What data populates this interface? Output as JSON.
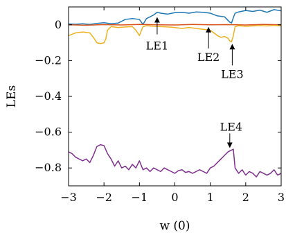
{
  "chart_data": {
    "type": "line",
    "xlabel": "w (0)",
    "ylabel": "LEs",
    "xlim": [
      -3,
      3
    ],
    "ylim": [
      -0.9,
      0.1
    ],
    "xticks": [
      -3,
      -2,
      -1,
      0,
      1,
      2,
      3
    ],
    "yticks": [
      0,
      -0.2,
      -0.4,
      -0.6,
      -0.8
    ],
    "xtick_labels": [
      "−3",
      "−2",
      "−1",
      "0",
      "1",
      "2",
      "3"
    ],
    "ytick_labels": [
      "0",
      "−0.2",
      "−0.4",
      "−0.6",
      "−0.8"
    ],
    "grid": false,
    "series": [
      {
        "name": "LE1",
        "color": "#1f77b4",
        "x": [
          -3.0,
          -2.8,
          -2.6,
          -2.4,
          -2.2,
          -2.0,
          -1.8,
          -1.6,
          -1.4,
          -1.2,
          -1.0,
          -0.9,
          -0.8,
          -0.6,
          -0.5,
          -0.4,
          -0.2,
          0.0,
          0.2,
          0.4,
          0.6,
          0.8,
          1.0,
          1.2,
          1.4,
          1.55,
          1.6,
          1.65,
          1.7,
          1.8,
          2.0,
          2.2,
          2.4,
          2.6,
          2.8,
          3.0
        ],
        "y": [
          0.005,
          0.003,
          0.006,
          0.002,
          0.008,
          0.012,
          0.006,
          0.01,
          0.03,
          0.035,
          0.03,
          0.002,
          0.035,
          0.055,
          0.07,
          0.065,
          0.06,
          0.068,
          0.07,
          0.065,
          0.072,
          0.07,
          0.065,
          0.05,
          0.045,
          0.015,
          0.01,
          0.04,
          0.065,
          0.072,
          0.08,
          0.075,
          0.082,
          0.07,
          0.085,
          0.078
        ]
      },
      {
        "name": "LE2",
        "color": "#d95319",
        "x": [
          -3.0,
          -2.5,
          -2.0,
          -1.5,
          -1.0,
          -0.5,
          0.0,
          0.5,
          1.0,
          1.5,
          2.0,
          2.5,
          3.0
        ],
        "y": [
          0.0,
          -0.002,
          0.001,
          -0.001,
          0.002,
          0.0,
          -0.001,
          0.002,
          0.0,
          0.001,
          -0.001,
          0.002,
          0.0
        ]
      },
      {
        "name": "LE3",
        "color": "#edb120",
        "x": [
          -3.0,
          -2.8,
          -2.6,
          -2.4,
          -2.3,
          -2.2,
          -2.1,
          -2.0,
          -1.95,
          -1.9,
          -1.8,
          -1.6,
          -1.4,
          -1.2,
          -1.1,
          -1.0,
          -0.9,
          -0.8,
          -0.6,
          -0.4,
          -0.2,
          0.0,
          0.2,
          0.4,
          0.6,
          0.8,
          1.0,
          1.1,
          1.2,
          1.3,
          1.4,
          1.5,
          1.55,
          1.6,
          1.65,
          1.7,
          1.8,
          2.0,
          2.2,
          2.4,
          2.6,
          2.8,
          3.0
        ],
        "y": [
          -0.06,
          -0.045,
          -0.04,
          -0.045,
          -0.07,
          -0.1,
          -0.105,
          -0.1,
          -0.08,
          -0.03,
          -0.01,
          -0.015,
          -0.012,
          -0.01,
          -0.03,
          -0.06,
          -0.01,
          -0.005,
          -0.008,
          -0.01,
          -0.012,
          -0.015,
          -0.02,
          -0.015,
          -0.02,
          -0.025,
          -0.03,
          -0.045,
          -0.06,
          -0.07,
          -0.065,
          -0.075,
          -0.09,
          -0.095,
          -0.06,
          -0.01,
          -0.005,
          -0.008,
          -0.006,
          -0.004,
          -0.006,
          -0.003,
          -0.005
        ]
      },
      {
        "name": "LE4",
        "color": "#7e2f8e",
        "x": [
          -3.0,
          -2.9,
          -2.8,
          -2.7,
          -2.6,
          -2.5,
          -2.4,
          -2.3,
          -2.2,
          -2.1,
          -2.0,
          -1.9,
          -1.8,
          -1.7,
          -1.6,
          -1.5,
          -1.4,
          -1.3,
          -1.2,
          -1.1,
          -1.0,
          -0.9,
          -0.8,
          -0.7,
          -0.6,
          -0.5,
          -0.4,
          -0.3,
          -0.2,
          -0.1,
          0.0,
          0.1,
          0.2,
          0.3,
          0.4,
          0.5,
          0.6,
          0.7,
          0.8,
          0.9,
          1.0,
          1.1,
          1.2,
          1.3,
          1.4,
          1.5,
          1.6,
          1.65,
          1.7,
          1.8,
          1.9,
          2.0,
          2.1,
          2.2,
          2.3,
          2.4,
          2.5,
          2.6,
          2.7,
          2.8,
          2.9,
          3.0
        ],
        "y": [
          -0.71,
          -0.72,
          -0.74,
          -0.75,
          -0.76,
          -0.75,
          -0.77,
          -0.73,
          -0.68,
          -0.67,
          -0.675,
          -0.72,
          -0.75,
          -0.79,
          -0.76,
          -0.8,
          -0.79,
          -0.81,
          -0.78,
          -0.8,
          -0.76,
          -0.81,
          -0.8,
          -0.82,
          -0.8,
          -0.81,
          -0.82,
          -0.8,
          -0.81,
          -0.82,
          -0.83,
          -0.815,
          -0.81,
          -0.825,
          -0.82,
          -0.83,
          -0.82,
          -0.81,
          -0.82,
          -0.83,
          -0.8,
          -0.79,
          -0.77,
          -0.75,
          -0.73,
          -0.71,
          -0.7,
          -0.695,
          -0.8,
          -0.83,
          -0.81,
          -0.84,
          -0.82,
          -0.83,
          -0.85,
          -0.82,
          -0.83,
          -0.84,
          -0.83,
          -0.81,
          -0.84,
          -0.83
        ]
      }
    ],
    "annotations": [
      {
        "label": "LE1",
        "x": -0.5,
        "y": 0.055
      },
      {
        "label": "LE2",
        "x": 0.95,
        "y": 0.0
      },
      {
        "label": "LE3",
        "x": 1.62,
        "y": -0.095
      },
      {
        "label": "LE4",
        "x": 1.55,
        "y": -0.7
      }
    ]
  }
}
